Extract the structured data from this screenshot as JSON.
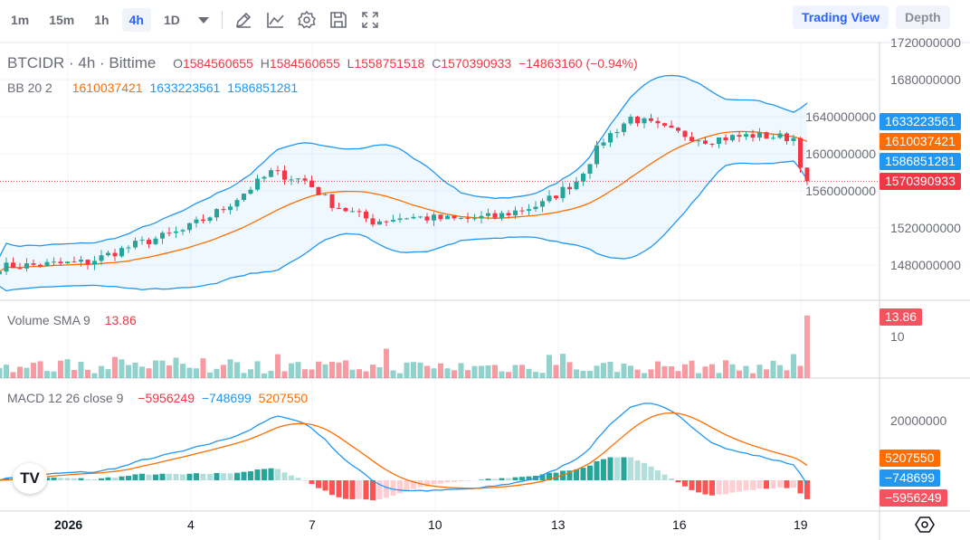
{
  "toolbar": {
    "timeframes": [
      "1m",
      "15m",
      "1h",
      "4h",
      "1D"
    ],
    "active": "4h",
    "icons": [
      "pencil-ruler-icon",
      "indicator-chart-icon",
      "gear-icon",
      "save-icon",
      "fullscreen-icon"
    ],
    "trading_view": "Trading View",
    "depth": "Depth"
  },
  "legend": {
    "symbol": "BTCIDR · 4h · Bittime",
    "o_label": "O",
    "o": "1584560655",
    "h_label": "H",
    "h": "1584560655",
    "l_label": "L",
    "l": "1558751518",
    "c_label": "C",
    "c": "1570390933",
    "change": "−14863160 (−0.94%)",
    "bb_label": "BB 20 2",
    "bb_basis": "1610037421",
    "bb_upper": "1633223561",
    "bb_lower": "1586851281",
    "vol_label": "Volume SMA 9",
    "vol_value": "13.86",
    "macd_label": "MACD 12 26 close 9",
    "macd_hist": "−5956249",
    "macd_line": "−748699",
    "macd_signal": "5207550"
  },
  "price_axis": [
    "1720000000",
    "1680000000",
    "1640000000",
    "1600000000",
    "1560000000",
    "1520000000",
    "1480000000"
  ],
  "volume_axis": [
    "10"
  ],
  "macd_axis": [
    "20000000"
  ],
  "time_axis": [
    "2026",
    "4",
    "7",
    "10",
    "13",
    "16",
    "19"
  ],
  "colors": {
    "up": "#26a69a",
    "down": "#f23645",
    "bb": "#2196f3",
    "basis": "#ff6d00",
    "accent": "#2962ff"
  },
  "chart_data": {
    "type": "candlestick",
    "interval": "4h",
    "candles": 120,
    "close_keypoints": [
      [
        0,
        1478
      ],
      [
        13,
        1483
      ],
      [
        20,
        1502
      ],
      [
        27,
        1517
      ],
      [
        33,
        1541
      ],
      [
        40,
        1580
      ],
      [
        45,
        1571
      ],
      [
        49,
        1546
      ],
      [
        55,
        1527
      ],
      [
        60,
        1532
      ],
      [
        67,
        1529
      ],
      [
        73,
        1532
      ],
      [
        80,
        1546
      ],
      [
        85,
        1571
      ],
      [
        89,
        1615
      ],
      [
        93,
        1639
      ],
      [
        99,
        1624
      ],
      [
        104,
        1615
      ],
      [
        111,
        1620
      ],
      [
        117,
        1617
      ],
      [
        118,
        1585
      ],
      [
        119,
        1570
      ]
    ],
    "price_unit": "million IDR",
    "last_volume": 13.86
  }
}
